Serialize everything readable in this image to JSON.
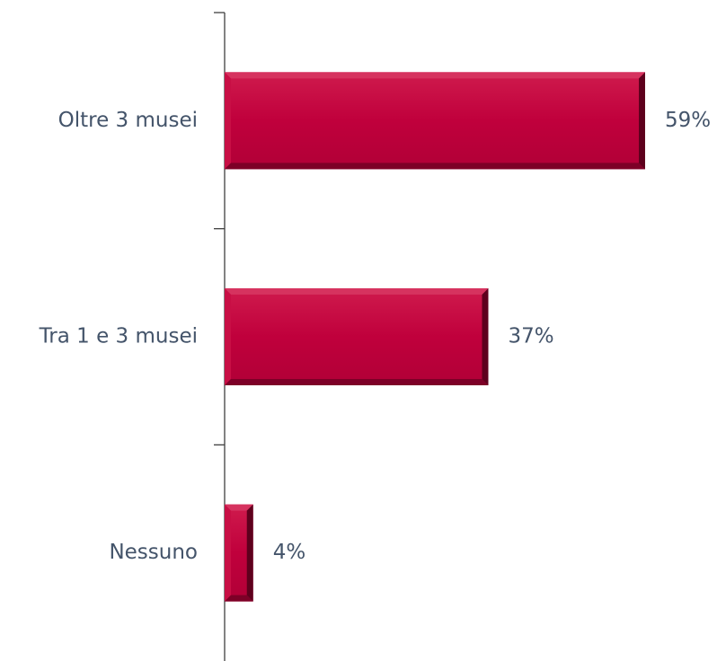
{
  "chart_data": {
    "type": "bar",
    "orientation": "horizontal",
    "categories": [
      "Oltre 3 musei",
      "Tra 1 e 3 musei",
      "Nessuno"
    ],
    "values": [
      59,
      37,
      4
    ],
    "value_labels": [
      "59%",
      "37%",
      "4%"
    ],
    "unit": "%",
    "xlim": [
      0,
      59
    ],
    "title": "",
    "xlabel": "",
    "ylabel": "",
    "grid": false,
    "legend": "none",
    "colors": {
      "bar": "#c0003c",
      "bar_highlight": "#d6335f",
      "bar_shadow": "#5e001d",
      "label_text": "#44546a",
      "axis": "#404040"
    }
  }
}
